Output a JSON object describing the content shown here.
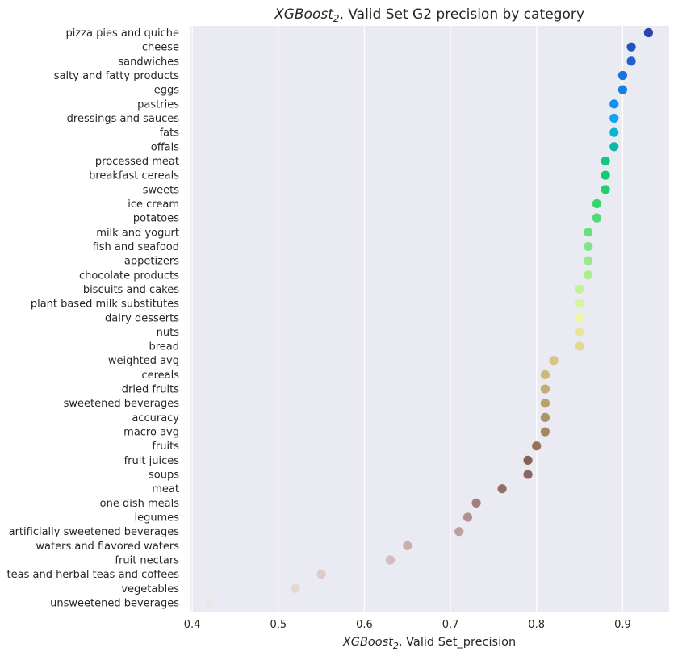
{
  "chart_data": {
    "type": "scatter",
    "title": {
      "prefix": "XGBoost",
      "sub": "2",
      "suffix": ", Valid Set G2 precision by category"
    },
    "xlabel": {
      "prefix": "XGBoost",
      "sub": "2",
      "suffix": ", Valid Set_precision"
    },
    "ylabel": "",
    "xlim": [
      0.398,
      0.954
    ],
    "xticks": [
      0.4,
      0.5,
      0.6,
      0.7,
      0.8,
      0.9
    ],
    "xtick_labels": [
      "0.4",
      "0.5",
      "0.6",
      "0.7",
      "0.8",
      "0.9"
    ],
    "grid": true,
    "background": "#eaeaf2",
    "categories": [
      "pizza pies and quiche",
      "cheese",
      "sandwiches",
      "salty and fatty products",
      "eggs",
      "pastries",
      "dressings and sauces",
      "fats",
      "offals",
      "processed meat",
      "breakfast cereals",
      "sweets",
      "ice cream",
      "potatoes",
      "milk and yogurt",
      "fish and seafood",
      "appetizers",
      "chocolate products",
      "biscuits and cakes",
      "plant based milk substitutes",
      "dairy desserts",
      "nuts",
      "bread",
      "weighted avg",
      "cereals",
      "dried fruits",
      "sweetened beverages",
      "accuracy",
      "macro avg",
      "fruits",
      "fruit juices",
      "soups",
      "meat",
      "one dish meals",
      "legumes",
      "artificially sweetened beverages",
      "waters and flavored waters",
      "fruit nectars",
      "teas and herbal teas and coffees",
      "vegetables",
      "unsweetened beverages"
    ],
    "values": [
      0.93,
      0.91,
      0.91,
      0.9,
      0.9,
      0.89,
      0.89,
      0.89,
      0.89,
      0.88,
      0.88,
      0.88,
      0.87,
      0.87,
      0.86,
      0.86,
      0.86,
      0.86,
      0.85,
      0.85,
      0.85,
      0.85,
      0.85,
      0.82,
      0.81,
      0.81,
      0.81,
      0.81,
      0.81,
      0.8,
      0.79,
      0.79,
      0.76,
      0.73,
      0.72,
      0.71,
      0.65,
      0.63,
      0.55,
      0.52,
      0.42
    ],
    "colors": [
      "#2a45a8",
      "#2454bf",
      "#2060cf",
      "#1a72dc",
      "#1680e6",
      "#1290ee",
      "#0ea3ee",
      "#0cb2cf",
      "#0cb8a5",
      "#10c682",
      "#14ca74",
      "#20ce6e",
      "#36d36f",
      "#50d877",
      "#6ade80",
      "#82e388",
      "#98e88e",
      "#aeec94",
      "#c4f09a",
      "#d8f39e",
      "#eef6a2",
      "#ece49c",
      "#e3d892",
      "#d6c586",
      "#ccb97c",
      "#c4ac74",
      "#b9a06c",
      "#ae9366",
      "#a48660",
      "#957258",
      "#86605a",
      "#8a6660",
      "#936e68",
      "#a47f7c",
      "#b09190",
      "#bd9fa0",
      "#caaeae",
      "#d4bcbc",
      "#dccbca",
      "#e2d8d6",
      "#ebe6e4"
    ]
  }
}
